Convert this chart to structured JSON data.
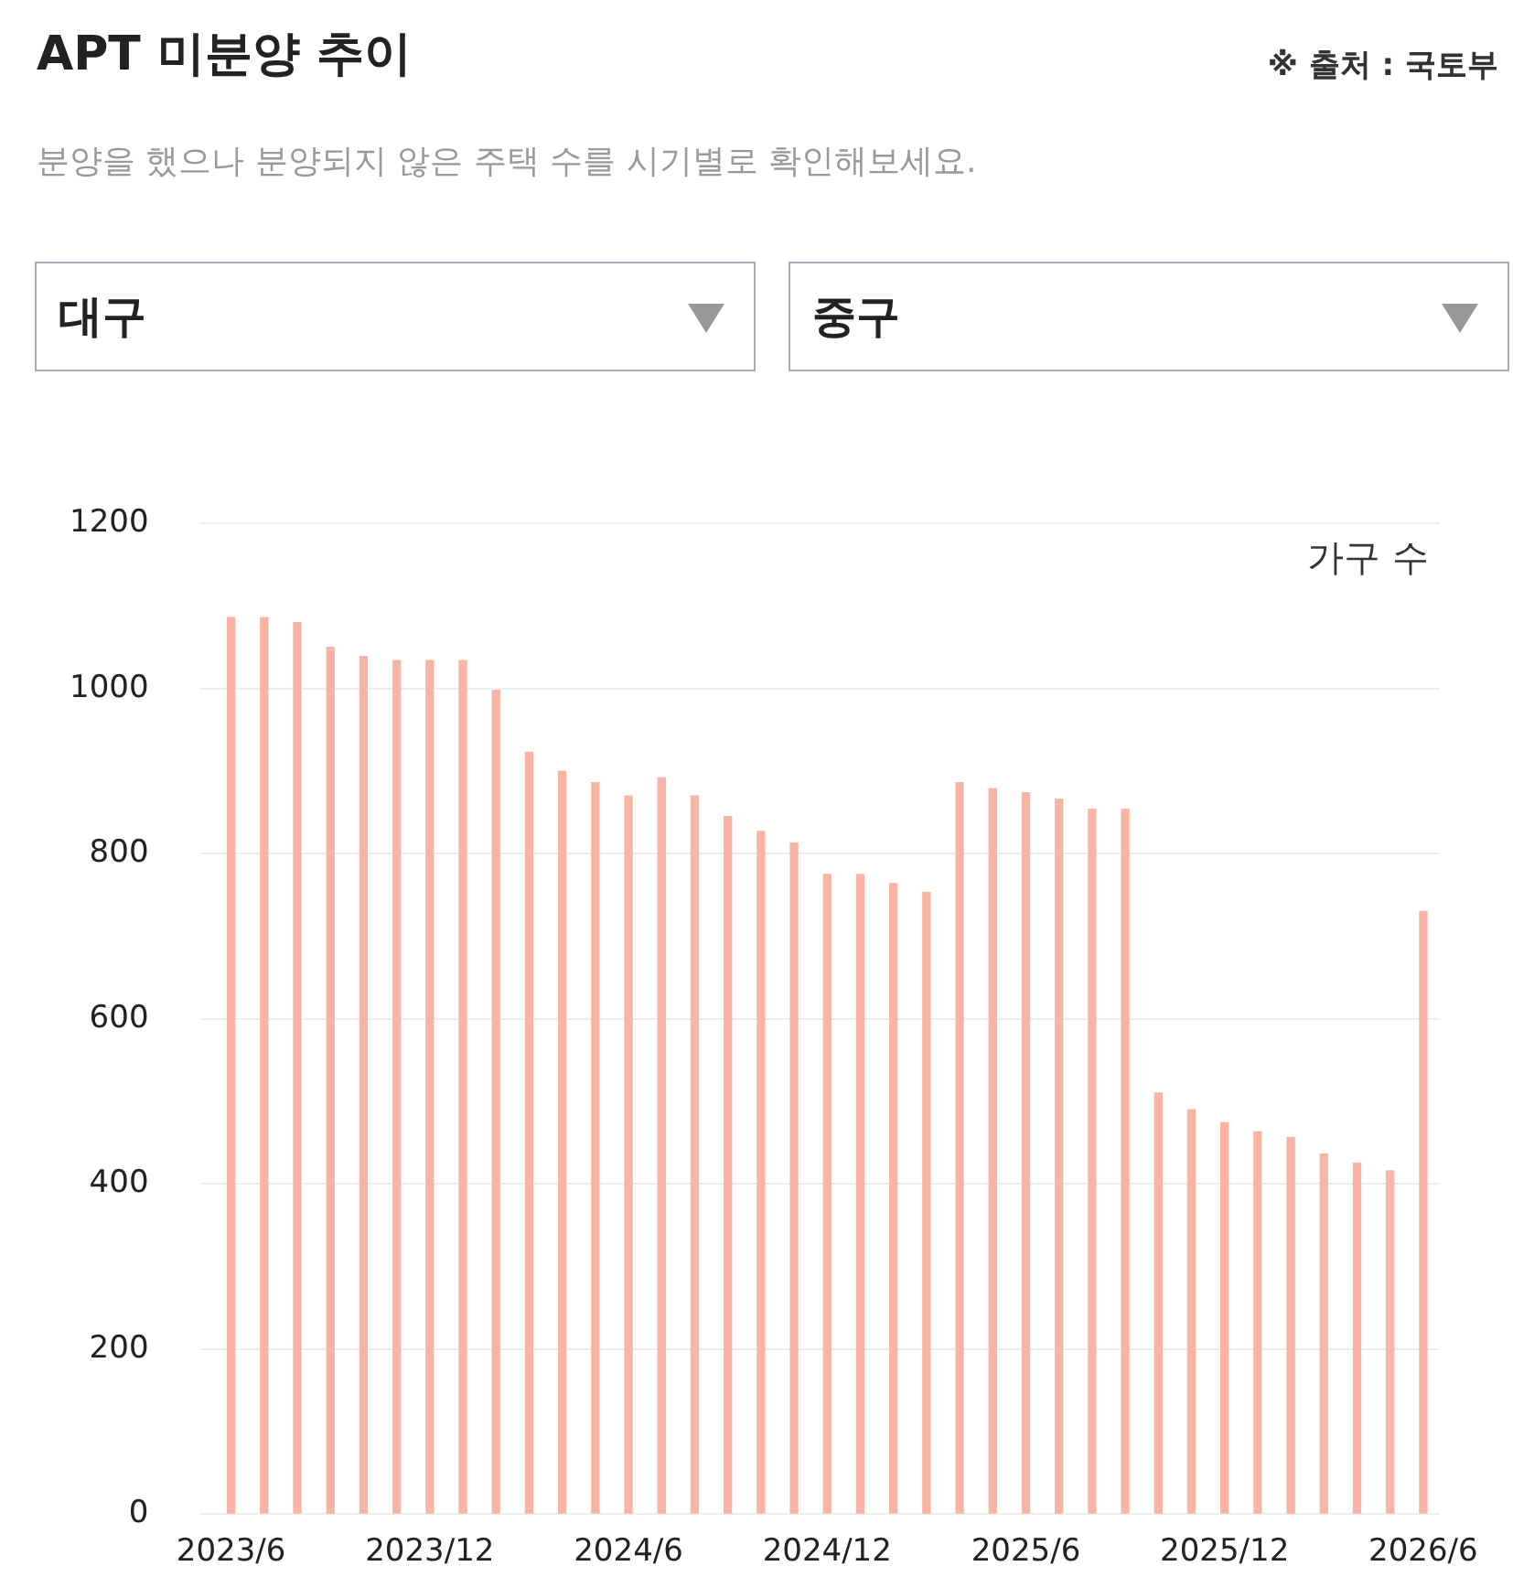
{
  "chart_data": {
    "type": "bar",
    "title": "APT 미분양 추이",
    "subtitle": "분양을 했으나 분양되지 않은 주택 수를 시기별로 확인해보세요.",
    "annotations": [
      "※ 출처 : 국토부",
      "대구",
      "중구"
    ],
    "ylabel": "가구 수",
    "categories": [
      "2023/6",
      null,
      null,
      null,
      null,
      null,
      "2023/12",
      null,
      null,
      null,
      null,
      null,
      "2024/6",
      null,
      null,
      null,
      null,
      null,
      "2024/12",
      null,
      null,
      null,
      null,
      null,
      "2025/6",
      null,
      null,
      null,
      null,
      null,
      "2025/12",
      null,
      null,
      null,
      null,
      null,
      "2026/6"
    ],
    "values": [
      1086,
      1086,
      1080,
      1050,
      1039,
      1034,
      1034,
      1034,
      998,
      923,
      900,
      886,
      870,
      892,
      870,
      845,
      827,
      813,
      775,
      775,
      764,
      753,
      886,
      879,
      874,
      866,
      854,
      854,
      510,
      490,
      474,
      463,
      456,
      436,
      425,
      416,
      730
    ],
    "color": "#f9b4a4",
    "ylim": [
      0,
      1200
    ],
    "yticks": [
      0,
      200,
      400,
      600,
      800,
      1000,
      1200
    ],
    "grid": "y",
    "legend": false
  }
}
